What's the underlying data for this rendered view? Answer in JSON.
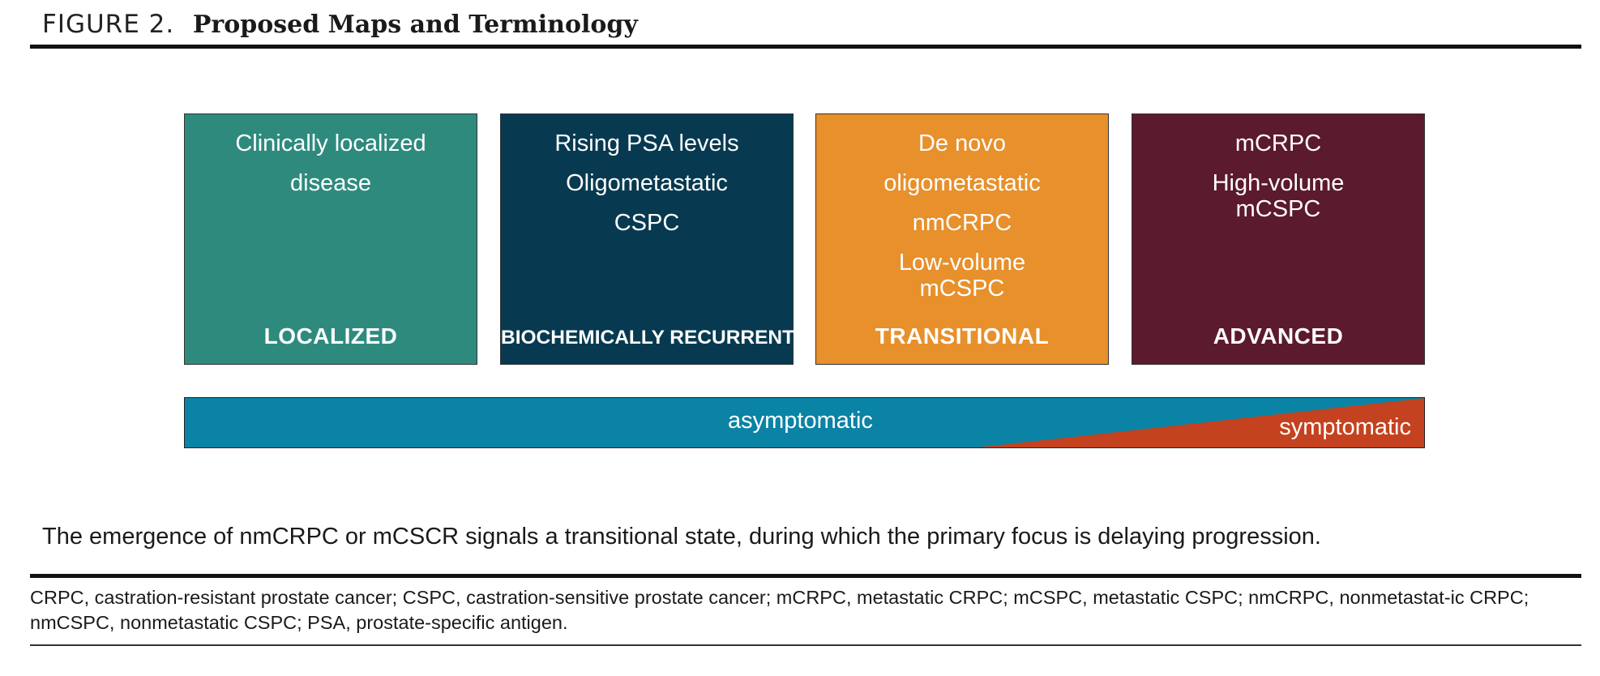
{
  "header": {
    "figure_label": "FIGURE 2.",
    "title": "Proposed Maps and Terminology"
  },
  "stages": [
    {
      "lines": [
        "Clinically localized",
        "disease"
      ],
      "label": "LOCALIZED",
      "color": "#2f8a7e"
    },
    {
      "lines": [
        "Rising PSA levels",
        "Oligometastatic",
        "CSPC"
      ],
      "label": "BIOCHEMICALLY RECURRENT",
      "color": "#073a50"
    },
    {
      "lines": [
        "De novo",
        "oligometastatic",
        "nmCRPC",
        "Low-volume\nmCSPC"
      ],
      "label": "TRANSITIONAL",
      "color": "#e7902c"
    },
    {
      "lines": [
        "mCRPC",
        "High-volume\nmCSPC"
      ],
      "label": "ADVANCED",
      "color": "#5b1a2d"
    }
  ],
  "symptom_bar": {
    "asymptomatic_label": "asymptomatic",
    "symptomatic_label": "symptomatic",
    "asymptomatic_color": "#0a83a5",
    "symptomatic_color": "#c4421f"
  },
  "caption": "The emergence of nmCRPC or mCSCR signals a transitional state, during which the primary focus is delaying progression.",
  "abbreviations": "CRPC, castration-resistant prostate cancer; CSPC, castration-sensitive prostate cancer; mCRPC, metastatic CRPC; mCSPC, metastatic CSPC; nmCRPC, nonmetastat-ic CRPC; nmCSPC, nonmetastatic CSPC; PSA, prostate-specific antigen."
}
